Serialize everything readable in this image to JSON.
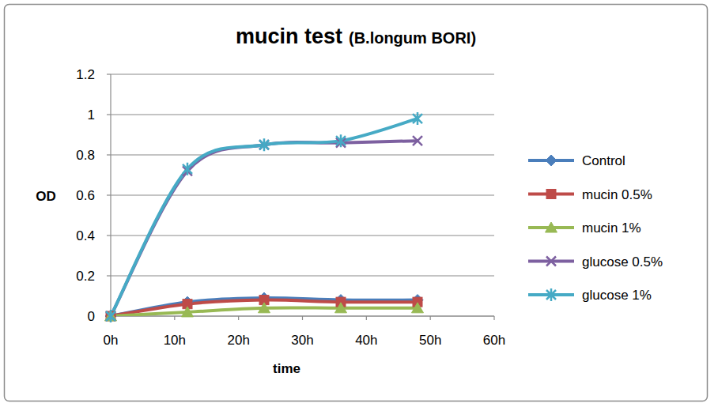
{
  "chart_data": {
    "type": "line",
    "title": "mucin test",
    "subtitle": "(B.longum BORI)",
    "x_label": "time",
    "y_label": "OD",
    "x": [
      0,
      12,
      24,
      36,
      48
    ],
    "series": [
      {
        "name": "Control",
        "color": "#4a7ebb",
        "marker": "diamond",
        "values": [
          0,
          0.07,
          0.09,
          0.08,
          0.08
        ]
      },
      {
        "name": "mucin 0.5%",
        "color": "#be4b48",
        "marker": "square",
        "values": [
          0,
          0.06,
          0.08,
          0.07,
          0.07
        ]
      },
      {
        "name": "mucin 1%",
        "color": "#98b954",
        "marker": "triangle",
        "values": [
          0,
          0.02,
          0.04,
          0.04,
          0.04
        ]
      },
      {
        "name": "glucose 0.5%",
        "color": "#7d60a0",
        "marker": "x",
        "values": [
          0,
          0.72,
          0.85,
          0.86,
          0.87
        ]
      },
      {
        "name": "glucose 1%",
        "color": "#46aac5",
        "marker": "star",
        "values": [
          0,
          0.73,
          0.85,
          0.87,
          0.98
        ]
      }
    ],
    "xlim": [
      0,
      60
    ],
    "xticks": [
      {
        "value": 0,
        "label": "0h"
      },
      {
        "value": 10,
        "label": "10h"
      },
      {
        "value": 20,
        "label": "20h"
      },
      {
        "value": 30,
        "label": "30h"
      },
      {
        "value": 40,
        "label": "40h"
      },
      {
        "value": 50,
        "label": "50h"
      },
      {
        "value": 60,
        "label": "60h"
      }
    ],
    "ylim": [
      0,
      1.2
    ],
    "yticks": [
      0,
      0.2,
      0.4,
      0.6,
      0.8,
      1,
      1.2
    ],
    "grid": true,
    "legend": "right"
  }
}
